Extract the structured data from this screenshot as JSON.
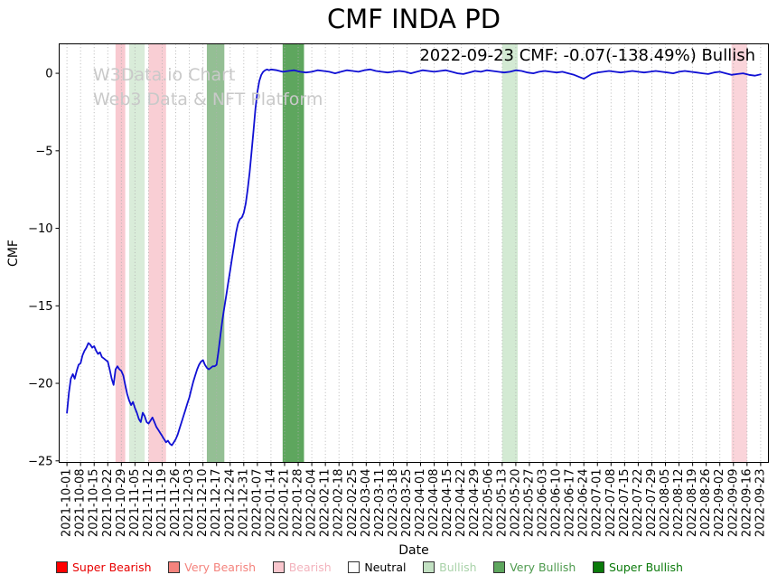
{
  "title": "CMF INDA PD",
  "annotation": "2022-09-23 CMF: -0.07(-138.49%) Bullish",
  "watermark": {
    "line1": "W3Data.io Chart",
    "line2": "Web3 Data & NFT Platform"
  },
  "chart_data": {
    "type": "line",
    "title": "CMF INDA PD",
    "xlabel": "Date",
    "ylabel": "CMF",
    "ylim": [
      -25.1,
      1.9
    ],
    "yticks": [
      0,
      -5,
      -10,
      -15,
      -20,
      -25
    ],
    "grid": "vertical-dotted",
    "legend_position": "bottom",
    "x_tick_dates": [
      "2021-10-01",
      "2021-10-08",
      "2021-10-15",
      "2021-10-22",
      "2021-10-29",
      "2021-11-05",
      "2021-11-12",
      "2021-11-19",
      "2021-11-26",
      "2021-12-03",
      "2021-12-10",
      "2021-12-17",
      "2021-12-24",
      "2021-12-31",
      "2022-01-07",
      "2022-01-14",
      "2022-01-21",
      "2022-01-28",
      "2022-02-04",
      "2022-02-11",
      "2022-02-18",
      "2022-02-25",
      "2022-03-04",
      "2022-03-11",
      "2022-03-18",
      "2022-03-25",
      "2022-04-01",
      "2022-04-08",
      "2022-04-15",
      "2022-04-22",
      "2022-04-29",
      "2022-05-06",
      "2022-05-13",
      "2022-05-20",
      "2022-05-27",
      "2022-06-03",
      "2022-06-10",
      "2022-06-17",
      "2022-06-24",
      "2022-07-01",
      "2022-07-08",
      "2022-07-15",
      "2022-07-22",
      "2022-07-29",
      "2022-08-05",
      "2022-08-12",
      "2022-08-19",
      "2022-08-26",
      "2022-09-02",
      "2022-09-09",
      "2022-09-16",
      "2022-09-23"
    ],
    "bands": [
      {
        "label": "Bearish",
        "from": "2021-10-26",
        "to": "2021-10-31",
        "color": "#f8c9d0"
      },
      {
        "label": "Bullish",
        "from": "2021-11-02",
        "to": "2021-11-10",
        "color": "#d9ecd9"
      },
      {
        "label": "Bearish",
        "from": "2021-11-12",
        "to": "2021-11-21",
        "color": "#f9ced4"
      },
      {
        "label": "Very Bullish",
        "from": "2021-12-12",
        "to": "2021-12-21",
        "color": "#94bf94"
      },
      {
        "label": "Very Bullish",
        "from": "2022-01-20",
        "to": "2022-01-31",
        "color": "#5ea65e"
      },
      {
        "label": "Bullish",
        "from": "2022-05-13",
        "to": "2022-05-21",
        "color": "#d3ead3"
      },
      {
        "label": "Bearish",
        "from": "2022-09-08",
        "to": "2022-09-16",
        "color": "#fad4da"
      }
    ],
    "series": [
      {
        "name": "CMF",
        "color": "#1010d4",
        "points": [
          [
            0,
            -21.9
          ],
          [
            1,
            -20.6
          ],
          [
            2,
            -19.7
          ],
          [
            3,
            -19.4
          ],
          [
            4,
            -19.7
          ],
          [
            5,
            -19.2
          ],
          [
            6,
            -18.8
          ],
          [
            7,
            -18.7
          ],
          [
            8,
            -18.2
          ],
          [
            9,
            -17.9
          ],
          [
            10,
            -17.7
          ],
          [
            11,
            -17.4
          ],
          [
            12,
            -17.5
          ],
          [
            13,
            -17.7
          ],
          [
            14,
            -17.6
          ],
          [
            15,
            -17.9
          ],
          [
            16,
            -18.1
          ],
          [
            17,
            -18.0
          ],
          [
            18,
            -18.3
          ],
          [
            19,
            -18.4
          ],
          [
            20,
            -18.5
          ],
          [
            21,
            -18.6
          ],
          [
            22,
            -19.1
          ],
          [
            23,
            -19.7
          ],
          [
            24,
            -20.1
          ],
          [
            25,
            -19.1
          ],
          [
            26,
            -18.9
          ],
          [
            27,
            -19.1
          ],
          [
            28,
            -19.2
          ],
          [
            29,
            -19.5
          ],
          [
            30,
            -20.1
          ],
          [
            31,
            -20.7
          ],
          [
            32,
            -21.1
          ],
          [
            33,
            -21.4
          ],
          [
            34,
            -21.2
          ],
          [
            35,
            -21.6
          ],
          [
            36,
            -21.9
          ],
          [
            37,
            -22.3
          ],
          [
            38,
            -22.5
          ],
          [
            39,
            -21.9
          ],
          [
            40,
            -22.1
          ],
          [
            41,
            -22.5
          ],
          [
            42,
            -22.6
          ],
          [
            43,
            -22.4
          ],
          [
            44,
            -22.2
          ],
          [
            45,
            -22.5
          ],
          [
            46,
            -22.8
          ],
          [
            47,
            -23.0
          ],
          [
            48,
            -23.2
          ],
          [
            49,
            -23.4
          ],
          [
            50,
            -23.6
          ],
          [
            51,
            -23.8
          ],
          [
            52,
            -23.7
          ],
          [
            53,
            -23.9
          ],
          [
            54,
            -24.0
          ],
          [
            55,
            -23.8
          ],
          [
            56,
            -23.6
          ],
          [
            57,
            -23.3
          ],
          [
            58,
            -22.9
          ],
          [
            59,
            -22.5
          ],
          [
            60,
            -22.1
          ],
          [
            61,
            -21.7
          ],
          [
            62,
            -21.3
          ],
          [
            63,
            -20.9
          ],
          [
            64,
            -20.4
          ],
          [
            65,
            -19.9
          ],
          [
            66,
            -19.5
          ],
          [
            67,
            -19.1
          ],
          [
            68,
            -18.8
          ],
          [
            69,
            -18.6
          ],
          [
            70,
            -18.5
          ],
          [
            71,
            -18.8
          ],
          [
            72,
            -19.0
          ],
          [
            73,
            -19.1
          ],
          [
            74,
            -19.0
          ],
          [
            75,
            -18.9
          ],
          [
            76,
            -18.9
          ],
          [
            77,
            -18.8
          ],
          [
            78,
            -17.9
          ],
          [
            79,
            -16.9
          ],
          [
            80,
            -15.9
          ],
          [
            81,
            -15.1
          ],
          [
            82,
            -14.3
          ],
          [
            83,
            -13.5
          ],
          [
            84,
            -12.7
          ],
          [
            85,
            -11.9
          ],
          [
            86,
            -11.1
          ],
          [
            87,
            -10.3
          ],
          [
            88,
            -9.7
          ],
          [
            89,
            -9.4
          ],
          [
            90,
            -9.3
          ],
          [
            91,
            -9.0
          ],
          [
            92,
            -8.4
          ],
          [
            93,
            -7.5
          ],
          [
            94,
            -6.4
          ],
          [
            95,
            -5.1
          ],
          [
            96,
            -3.7
          ],
          [
            97,
            -2.3
          ],
          [
            98,
            -1.2
          ],
          [
            99,
            -0.5
          ],
          [
            100,
            -0.1
          ],
          [
            101,
            0.1
          ],
          [
            102,
            0.2
          ],
          [
            103,
            0.25
          ],
          [
            104,
            0.2
          ],
          [
            105,
            0.25
          ],
          [
            108,
            0.2
          ],
          [
            111,
            0.1
          ],
          [
            114,
            0.15
          ],
          [
            117,
            0.2
          ],
          [
            120,
            0.1
          ],
          [
            123,
            0.05
          ],
          [
            126,
            0.1
          ],
          [
            129,
            0.2
          ],
          [
            132,
            0.15
          ],
          [
            135,
            0.1
          ],
          [
            138,
            0
          ],
          [
            141,
            0.1
          ],
          [
            144,
            0.2
          ],
          [
            147,
            0.15
          ],
          [
            150,
            0.1
          ],
          [
            153,
            0.2
          ],
          [
            156,
            0.25
          ],
          [
            159,
            0.15
          ],
          [
            162,
            0.1
          ],
          [
            165,
            0.05
          ],
          [
            168,
            0.1
          ],
          [
            171,
            0.15
          ],
          [
            174,
            0.1
          ],
          [
            177,
            0
          ],
          [
            180,
            0.1
          ],
          [
            183,
            0.2
          ],
          [
            186,
            0.15
          ],
          [
            189,
            0.1
          ],
          [
            192,
            0.15
          ],
          [
            195,
            0.2
          ],
          [
            198,
            0.1
          ],
          [
            201,
            0
          ],
          [
            204,
            -0.05
          ],
          [
            207,
            0.05
          ],
          [
            210,
            0.15
          ],
          [
            213,
            0.1
          ],
          [
            216,
            0.2
          ],
          [
            219,
            0.15
          ],
          [
            222,
            0.1
          ],
          [
            225,
            0.05
          ],
          [
            228,
            0.1
          ],
          [
            231,
            0.2
          ],
          [
            234,
            0.15
          ],
          [
            237,
            0.05
          ],
          [
            240,
            0
          ],
          [
            243,
            0.1
          ],
          [
            246,
            0.15
          ],
          [
            249,
            0.1
          ],
          [
            252,
            0.05
          ],
          [
            255,
            0.1
          ],
          [
            258,
            0
          ],
          [
            261,
            -0.1
          ],
          [
            264,
            -0.25
          ],
          [
            266,
            -0.35
          ],
          [
            268,
            -0.2
          ],
          [
            270,
            -0.05
          ],
          [
            273,
            0.05
          ],
          [
            276,
            0.1
          ],
          [
            279,
            0.15
          ],
          [
            282,
            0.1
          ],
          [
            285,
            0.05
          ],
          [
            288,
            0.1
          ],
          [
            291,
            0.15
          ],
          [
            294,
            0.1
          ],
          [
            297,
            0.05
          ],
          [
            300,
            0.1
          ],
          [
            303,
            0.15
          ],
          [
            306,
            0.1
          ],
          [
            309,
            0.05
          ],
          [
            312,
            0
          ],
          [
            315,
            0.1
          ],
          [
            318,
            0.15
          ],
          [
            321,
            0.1
          ],
          [
            324,
            0.05
          ],
          [
            327,
            0
          ],
          [
            330,
            -0.05
          ],
          [
            333,
            0.05
          ],
          [
            336,
            0.1
          ],
          [
            339,
            0
          ],
          [
            342,
            -0.1
          ],
          [
            345,
            -0.05
          ],
          [
            348,
            0
          ],
          [
            351,
            -0.1
          ],
          [
            354,
            -0.15
          ],
          [
            357,
            -0.07
          ]
        ]
      }
    ],
    "legend": [
      {
        "label": "Super Bearish",
        "color": "#ff0000",
        "text_color": "#e80000"
      },
      {
        "label": "Very Bearish",
        "color": "#f4837d",
        "text_color": "#f4837d"
      },
      {
        "label": "Bearish",
        "color": "#f9c6cd",
        "text_color": "#f3b3bd"
      },
      {
        "label": "Neutral",
        "color": "#ffffff",
        "text_color": "#000000"
      },
      {
        "label": "Bullish",
        "color": "#c2e0c2",
        "text_color": "#a9d2a9"
      },
      {
        "label": "Very Bullish",
        "color": "#5ea65e",
        "text_color": "#4e9a4e"
      },
      {
        "label": "Super Bullish",
        "color": "#0b7a0b",
        "text_color": "#0b7a0b"
      }
    ]
  }
}
